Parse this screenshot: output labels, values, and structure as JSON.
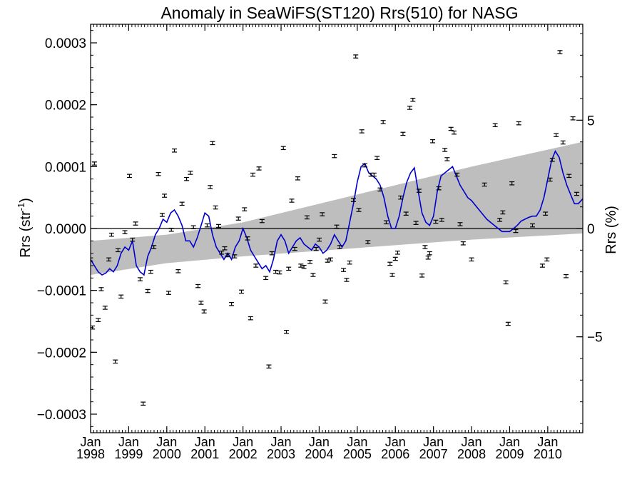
{
  "chart_data": {
    "type": "scatter",
    "title": "Anomaly in SeaWiFS(ST120) Rrs(510) for NASG",
    "ylabel_main": "Rrs (str",
    "ylabel_sup": "-1",
    "ylabel_close": ")",
    "ylabel_right": "Rrs (%)",
    "xlim": [
      1998.0,
      2010.92
    ],
    "ylim": [
      -0.00033,
      0.00033
    ],
    "y_ticks": [
      {
        "value": 0.0003,
        "label": "0.0003"
      },
      {
        "value": 0.0002,
        "label": "0.0002"
      },
      {
        "value": 0.0001,
        "label": "0.0001"
      },
      {
        "value": 0.0,
        "label": "0.0000"
      },
      {
        "value": -0.0001,
        "label": "−0.0001"
      },
      {
        "value": -0.0002,
        "label": "−0.0002"
      },
      {
        "value": -0.0003,
        "label": "−0.0003"
      }
    ],
    "y_right_ticks": [
      {
        "value": 0.000175,
        "label": "5"
      },
      {
        "value": 0.0,
        "label": "0"
      },
      {
        "value": -0.000175,
        "label": "−5"
      }
    ],
    "x_ticks": [
      {
        "value": 1998,
        "month": "Jan",
        "year": "1998"
      },
      {
        "value": 1999,
        "month": "Jan",
        "year": "1999"
      },
      {
        "value": 2000,
        "month": "Jan",
        "year": "2000"
      },
      {
        "value": 2001,
        "month": "Jan",
        "year": "2001"
      },
      {
        "value": 2002,
        "month": "Jan",
        "year": "2002"
      },
      {
        "value": 2003,
        "month": "Jan",
        "year": "2003"
      },
      {
        "value": 2004,
        "month": "Jan",
        "year": "2004"
      },
      {
        "value": 2005,
        "month": "Jan",
        "year": "2005"
      },
      {
        "value": 2006,
        "month": "Jan",
        "year": "2006"
      },
      {
        "value": 2007,
        "month": "Jan",
        "year": "2007"
      },
      {
        "value": 2008,
        "month": "Jan",
        "year": "2008"
      },
      {
        "value": 2009,
        "month": "Jan",
        "year": "2009"
      },
      {
        "value": 2010,
        "month": "Jan",
        "year": "2010"
      }
    ],
    "band": {
      "x": [
        1998.0,
        2000.0,
        2002.0,
        2004.0,
        2006.0,
        2008.0,
        2010.92
      ],
      "upper": [
        -2e-05,
        -1e-05,
        1e-05,
        4e-05,
        7e-05,
        0.0001,
        0.00014
      ],
      "lower": [
        -7.5e-05,
        -5.6e-05,
        -4.5e-05,
        -3.6e-05,
        -2.7e-05,
        -1.8e-05,
        -8e-06
      ],
      "color": "#bebebe"
    },
    "smooth_line": {
      "color": "#0000cc",
      "x": [
        1998.0,
        1998.1,
        1998.2,
        1998.3,
        1998.4,
        1998.5,
        1998.6,
        1998.7,
        1998.8,
        1998.9,
        1999.0,
        1999.1,
        1999.2,
        1999.3,
        1999.4,
        1999.5,
        1999.6,
        1999.7,
        1999.8,
        1999.9,
        2000.0,
        2000.1,
        2000.2,
        2000.3,
        2000.4,
        2000.5,
        2000.6,
        2000.7,
        2000.8,
        2000.9,
        2001.0,
        2001.1,
        2001.2,
        2001.3,
        2001.4,
        2001.5,
        2001.6,
        2001.7,
        2001.8,
        2001.9,
        2002.0,
        2002.1,
        2002.2,
        2002.3,
        2002.4,
        2002.5,
        2002.6,
        2002.7,
        2002.8,
        2002.9,
        2003.0,
        2003.1,
        2003.2,
        2003.3,
        2003.4,
        2003.5,
        2003.6,
        2003.7,
        2003.8,
        2003.9,
        2004.0,
        2004.1,
        2004.2,
        2004.3,
        2004.4,
        2004.5,
        2004.6,
        2004.7,
        2004.8,
        2004.9,
        2005.0,
        2005.1,
        2005.2,
        2005.3,
        2005.4,
        2005.5,
        2005.6,
        2005.7,
        2005.8,
        2005.9,
        2006.0,
        2006.1,
        2006.2,
        2006.3,
        2006.4,
        2006.5,
        2006.6,
        2006.7,
        2006.8,
        2006.9,
        2007.0,
        2007.1,
        2007.2,
        2007.3,
        2007.4,
        2007.5,
        2007.6,
        2007.7,
        2007.8,
        2007.9,
        2008.0,
        2008.2,
        2008.4,
        2008.6,
        2008.8,
        2009.0,
        2009.1,
        2009.2,
        2009.3,
        2009.4,
        2009.5,
        2009.6,
        2009.7,
        2009.8,
        2009.9,
        2010.0,
        2010.1,
        2010.2,
        2010.3,
        2010.4,
        2010.5,
        2010.6,
        2010.7,
        2010.8,
        2010.92
      ],
      "y": [
        -5e-05,
        -6e-05,
        -7e-05,
        -7.5e-05,
        -7.2e-05,
        -6.5e-05,
        -7e-05,
        -6e-05,
        -4e-05,
        -3e-05,
        -3.5e-05,
        -2e-05,
        -6e-05,
        -7e-05,
        -7.5e-05,
        -4.5e-05,
        -3e-05,
        -1e-05,
        0.0,
        1.5e-05,
        1e-05,
        2.5e-05,
        3e-05,
        2e-05,
        5e-06,
        -2e-05,
        -2e-05,
        -3e-05,
        -1.5e-05,
        5e-06,
        2.5e-05,
        2e-05,
        -1e-05,
        -3e-05,
        -4e-05,
        -5e-05,
        -4e-05,
        -5e-05,
        -3e-05,
        -2e-05,
        0.0,
        -1.5e-05,
        -3.5e-05,
        -4.5e-05,
        -5.5e-05,
        -6.5e-05,
        -6e-05,
        -7e-05,
        -5e-05,
        -2e-05,
        -1e-05,
        -2e-05,
        -4e-05,
        -3e-05,
        -2e-05,
        -1.5e-05,
        -2.5e-05,
        -3e-05,
        -3.5e-05,
        -2.5e-05,
        -3e-05,
        -4e-05,
        -3.5e-05,
        -2.5e-05,
        -1e-05,
        -2e-05,
        -3e-05,
        -2e-05,
        1e-05,
        4e-05,
        7.5e-05,
        0.0001,
        0.000105,
        9e-05,
        8.5e-05,
        8e-05,
        7e-05,
        5e-05,
        2e-05,
        0.0,
        0.0,
        2e-05,
        5e-05,
        7.5e-05,
        9e-05,
        9.8e-05,
        6e-05,
        2.5e-05,
        1e-05,
        5e-06,
        2e-05,
        6e-05,
        8.5e-05,
        9e-05,
        9.5e-05,
        0.0001,
        8.5e-05,
        7e-05,
        6e-05,
        5e-05,
        4.5e-05,
        3e-05,
        1.5e-05,
        5e-06,
        -5e-06,
        -5e-06,
        0.0,
        5e-06,
        1.2e-05,
        1.5e-05,
        1.8e-05,
        2e-05,
        2e-05,
        3e-05,
        5e-05,
        8e-05,
        0.00011,
        0.000125,
        0.000115,
        9e-05,
        7e-05,
        5.5e-05,
        4e-05,
        4e-05,
        4.8e-05
      ]
    },
    "points": [
      {
        "x": 1998.0,
        "y": -5e-05
      },
      {
        "x": 1998.05,
        "y": -0.00016
      },
      {
        "x": 1998.1,
        "y": 0.000105
      },
      {
        "x": 1998.2,
        "y": -0.000148
      },
      {
        "x": 1998.28,
        "y": -9.8e-05
      },
      {
        "x": 1998.38,
        "y": -0.000128
      },
      {
        "x": 1998.48,
        "y": -5e-05
      },
      {
        "x": 1998.55,
        "y": -1e-05
      },
      {
        "x": 1998.65,
        "y": -0.000215
      },
      {
        "x": 1998.72,
        "y": -3.5e-05
      },
      {
        "x": 1998.8,
        "y": -0.00011
      },
      {
        "x": 1998.9,
        "y": -6e-06
      },
      {
        "x": 1999.02,
        "y": 8.5e-05
      },
      {
        "x": 1999.1,
        "y": -1.8e-05
      },
      {
        "x": 1999.18,
        "y": 8e-06
      },
      {
        "x": 1999.3,
        "y": -8.2e-05
      },
      {
        "x": 1999.38,
        "y": -0.000283
      },
      {
        "x": 1999.5,
        "y": -0.000101
      },
      {
        "x": 1999.58,
        "y": -7e-05
      },
      {
        "x": 1999.66,
        "y": -3e-05
      },
      {
        "x": 1999.78,
        "y": 8.8e-05
      },
      {
        "x": 1999.88,
        "y": 2.2e-05
      },
      {
        "x": 1999.94,
        "y": 5.3e-05
      },
      {
        "x": 2000.05,
        "y": -0.000104
      },
      {
        "x": 2000.12,
        "y": -2e-06
      },
      {
        "x": 2000.2,
        "y": 0.000126
      },
      {
        "x": 2000.3,
        "y": -6.9e-05
      },
      {
        "x": 2000.4,
        "y": 4e-05
      },
      {
        "x": 2000.52,
        "y": 8e-05
      },
      {
        "x": 2000.62,
        "y": 9e-05
      },
      {
        "x": 2000.7,
        "y": 2e-06
      },
      {
        "x": 2000.82,
        "y": -9.3e-05
      },
      {
        "x": 2000.9,
        "y": -0.00012
      },
      {
        "x": 2000.98,
        "y": -0.000134
      },
      {
        "x": 2001.06,
        "y": 5e-06
      },
      {
        "x": 2001.14,
        "y": 6.7e-05
      },
      {
        "x": 2001.2,
        "y": 0.000138
      },
      {
        "x": 2001.28,
        "y": 3.4e-05
      },
      {
        "x": 2001.36,
        "y": 4e-06
      },
      {
        "x": 2001.44,
        "y": -3.9e-05
      },
      {
        "x": 2001.52,
        "y": -3.2e-05
      },
      {
        "x": 2001.6,
        "y": -4.3e-05
      },
      {
        "x": 2001.7,
        "y": -0.000122
      },
      {
        "x": 2001.78,
        "y": -4.5e-05
      },
      {
        "x": 2001.88,
        "y": 1.6e-05
      },
      {
        "x": 2001.96,
        "y": -0.000102
      },
      {
        "x": 2002.04,
        "y": 3.1e-05
      },
      {
        "x": 2002.12,
        "y": -1.6e-05
      },
      {
        "x": 2002.2,
        "y": -0.000145
      },
      {
        "x": 2002.26,
        "y": 8.7e-05
      },
      {
        "x": 2002.34,
        "y": -6e-05
      },
      {
        "x": 2002.42,
        "y": 9.7e-05
      },
      {
        "x": 2002.5,
        "y": 1.2e-05
      },
      {
        "x": 2002.6,
        "y": -8e-05
      },
      {
        "x": 2002.68,
        "y": -0.000223
      },
      {
        "x": 2002.76,
        "y": -4e-05
      },
      {
        "x": 2002.86,
        "y": -7e-05
      },
      {
        "x": 2002.96,
        "y": -7.1e-05
      },
      {
        "x": 2003.06,
        "y": 0.00013
      },
      {
        "x": 2003.14,
        "y": -0.000167
      },
      {
        "x": 2003.2,
        "y": -6.5e-05
      },
      {
        "x": 2003.28,
        "y": 4.5e-05
      },
      {
        "x": 2003.36,
        "y": -3.3e-05
      },
      {
        "x": 2003.44,
        "y": 8.1e-05
      },
      {
        "x": 2003.52,
        "y": -6e-05
      },
      {
        "x": 2003.6,
        "y": -6.2e-05
      },
      {
        "x": 2003.68,
        "y": 1.8e-05
      },
      {
        "x": 2003.76,
        "y": -5.4e-05
      },
      {
        "x": 2003.84,
        "y": -7.5e-05
      },
      {
        "x": 2003.92,
        "y": -3.3e-05
      },
      {
        "x": 2004.0,
        "y": -1.8e-05
      },
      {
        "x": 2004.08,
        "y": 2.3e-05
      },
      {
        "x": 2004.16,
        "y": -0.000118
      },
      {
        "x": 2004.22,
        "y": -5.2e-05
      },
      {
        "x": 2004.3,
        "y": -5e-05
      },
      {
        "x": 2004.4,
        "y": 0.000117
      },
      {
        "x": 2004.46,
        "y": 3e-06
      },
      {
        "x": 2004.54,
        "y": -3e-05
      },
      {
        "x": 2004.64,
        "y": -6.7e-05
      },
      {
        "x": 2004.72,
        "y": -8.3e-05
      },
      {
        "x": 2004.8,
        "y": -5.5e-05
      },
      {
        "x": 2004.9,
        "y": 4.6e-05
      },
      {
        "x": 2004.96,
        "y": 0.000278
      },
      {
        "x": 2005.04,
        "y": 3e-05
      },
      {
        "x": 2005.12,
        "y": 0.000157
      },
      {
        "x": 2005.2,
        "y": 0.000102
      },
      {
        "x": 2005.28,
        "y": -2.2e-05
      },
      {
        "x": 2005.36,
        "y": 8.7e-05
      },
      {
        "x": 2005.44,
        "y": 8.7e-05
      },
      {
        "x": 2005.52,
        "y": 0.000114
      },
      {
        "x": 2005.6,
        "y": 6.3e-05
      },
      {
        "x": 2005.68,
        "y": 0.000172
      },
      {
        "x": 2005.76,
        "y": 1e-05
      },
      {
        "x": 2005.86,
        "y": -5.7e-05
      },
      {
        "x": 2005.92,
        "y": -7.5e-05
      },
      {
        "x": 2006.0,
        "y": -4.9e-05
      },
      {
        "x": 2006.06,
        "y": -3.9e-05
      },
      {
        "x": 2006.14,
        "y": 5e-05
      },
      {
        "x": 2006.2,
        "y": 0.000153
      },
      {
        "x": 2006.28,
        "y": 2.4e-05
      },
      {
        "x": 2006.38,
        "y": 0.000195
      },
      {
        "x": 2006.46,
        "y": 0.000208
      },
      {
        "x": 2006.54,
        "y": 9e-06
      },
      {
        "x": 2006.62,
        "y": 6.1e-05
      },
      {
        "x": 2006.7,
        "y": -7.6e-05
      },
      {
        "x": 2006.78,
        "y": -3e-05
      },
      {
        "x": 2006.86,
        "y": -4.7e-05
      },
      {
        "x": 2006.9,
        "y": -4e-05
      },
      {
        "x": 2006.98,
        "y": 0.000141
      },
      {
        "x": 2007.06,
        "y": 1.1e-05
      },
      {
        "x": 2007.14,
        "y": 6.5e-05
      },
      {
        "x": 2007.22,
        "y": 1.4e-05
      },
      {
        "x": 2007.3,
        "y": 0.000127
      },
      {
        "x": 2007.36,
        "y": 0.000112
      },
      {
        "x": 2007.46,
        "y": 0.000161
      },
      {
        "x": 2007.54,
        "y": 0.000155
      },
      {
        "x": 2007.62,
        "y": 8.7e-05
      },
      {
        "x": 2007.7,
        "y": 7e-06
      },
      {
        "x": 2007.78,
        "y": -2.4e-05
      },
      {
        "x": 2008.0,
        "y": -5e-05
      },
      {
        "x": 2008.34,
        "y": 7.1e-05
      },
      {
        "x": 2008.62,
        "y": 0.000167
      },
      {
        "x": 2008.74,
        "y": 1.4e-05
      },
      {
        "x": 2008.82,
        "y": 2.6e-05
      },
      {
        "x": 2008.9,
        "y": -8.7e-05
      },
      {
        "x": 2008.96,
        "y": -0.000154
      },
      {
        "x": 2009.06,
        "y": 7.3e-05
      },
      {
        "x": 2009.16,
        "y": -4e-06
      },
      {
        "x": 2009.24,
        "y": 0.00017
      },
      {
        "x": 2009.6,
        "y": 5e-06
      },
      {
        "x": 2009.86,
        "y": -6e-05
      },
      {
        "x": 2009.94,
        "y": 2.4e-05
      },
      {
        "x": 2009.98,
        "y": -5e-05
      },
      {
        "x": 2010.06,
        "y": 7.9e-05
      },
      {
        "x": 2010.12,
        "y": 0.000111
      },
      {
        "x": 2010.22,
        "y": 0.000151
      },
      {
        "x": 2010.32,
        "y": 0.000285
      },
      {
        "x": 2010.4,
        "y": 0.000139
      },
      {
        "x": 2010.48,
        "y": -7.7e-05
      },
      {
        "x": 2010.56,
        "y": 8.5e-05
      },
      {
        "x": 2010.66,
        "y": 0.000178
      },
      {
        "x": 2010.76,
        "y": 5.6e-05
      }
    ],
    "error_halfwidth": 2.5e-06
  }
}
